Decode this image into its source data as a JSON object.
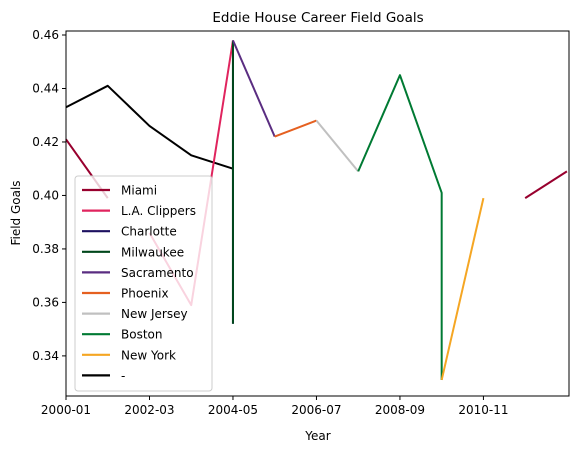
{
  "chart_data": {
    "type": "line",
    "title": "Eddie House Career Field Goals",
    "xlabel": "Year",
    "ylabel": "Field Goals",
    "xlim": [
      2000,
      2012.05
    ],
    "ylim": [
      0.325,
      0.4615
    ],
    "x_ticks": [
      {
        "value": 2000,
        "label": "2000-01"
      },
      {
        "value": 2002,
        "label": "2002-03"
      },
      {
        "value": 2004,
        "label": "2004-05"
      },
      {
        "value": 2006,
        "label": "2006-07"
      },
      {
        "value": 2008,
        "label": "2008-09"
      },
      {
        "value": 2010,
        "label": "2010-11"
      }
    ],
    "y_ticks": [
      0.34,
      0.36,
      0.38,
      0.4,
      0.42,
      0.44,
      0.46
    ],
    "y_tick_labels": [
      "0.34",
      "0.36",
      "0.38",
      "0.40",
      "0.42",
      "0.44",
      "0.46"
    ],
    "grid": false,
    "legend_position": "lower-left",
    "series": [
      {
        "name": "-",
        "color": "#000000",
        "x": [
          2000,
          2001,
          2002,
          2003,
          2004
        ],
        "y": [
          0.433,
          0.441,
          0.426,
          0.415,
          0.41
        ]
      },
      {
        "name": "Miami",
        "color": "#98002E",
        "x": [
          2000,
          2001
        ],
        "y": [
          0.421,
          0.399
        ]
      },
      {
        "name": "Miami",
        "color": "#98002E",
        "x": [
          2011,
          2012
        ],
        "y": [
          0.399,
          0.409
        ]
      },
      {
        "name": "L.A. Clippers",
        "color": "#E0245E",
        "x": [
          2002,
          2003,
          2004
        ],
        "y": [
          0.386,
          0.359,
          0.458
        ]
      },
      {
        "name": "Charlotte",
        "color": "#1D1160",
        "x": [
          2004,
          2004
        ],
        "y": [
          0.453,
          0.352
        ]
      },
      {
        "name": "Milwaukee",
        "color": "#00471B",
        "x": [
          2004,
          2004
        ],
        "y": [
          0.458,
          0.352
        ]
      },
      {
        "name": "Sacramento",
        "color": "#5A2D81",
        "x": [
          2004,
          2005
        ],
        "y": [
          0.458,
          0.422
        ]
      },
      {
        "name": "Phoenix",
        "color": "#E56020",
        "x": [
          2005,
          2006
        ],
        "y": [
          0.422,
          0.428
        ]
      },
      {
        "name": "New Jersey",
        "color": "#C0C0C0",
        "x": [
          2006,
          2007
        ],
        "y": [
          0.428,
          0.409
        ]
      },
      {
        "name": "Boston",
        "color": "#007A33",
        "x": [
          2007,
          2008,
          2009,
          2009
        ],
        "y": [
          0.409,
          0.445,
          0.401,
          0.331
        ]
      },
      {
        "name": "New York",
        "color": "#F5A623",
        "x": [
          2009,
          2010
        ],
        "y": [
          0.331,
          0.399
        ]
      }
    ],
    "legend": [
      {
        "label": "Miami",
        "color": "#98002E"
      },
      {
        "label": "L.A. Clippers",
        "color": "#E0245E"
      },
      {
        "label": "Charlotte",
        "color": "#1D1160"
      },
      {
        "label": "Milwaukee",
        "color": "#00471B"
      },
      {
        "label": "Sacramento",
        "color": "#5A2D81"
      },
      {
        "label": "Phoenix",
        "color": "#E56020"
      },
      {
        "label": "New Jersey",
        "color": "#C0C0C0"
      },
      {
        "label": "Boston",
        "color": "#007A33"
      },
      {
        "label": "New York",
        "color": "#F5A623"
      },
      {
        "label": "-",
        "color": "#000000"
      }
    ]
  }
}
